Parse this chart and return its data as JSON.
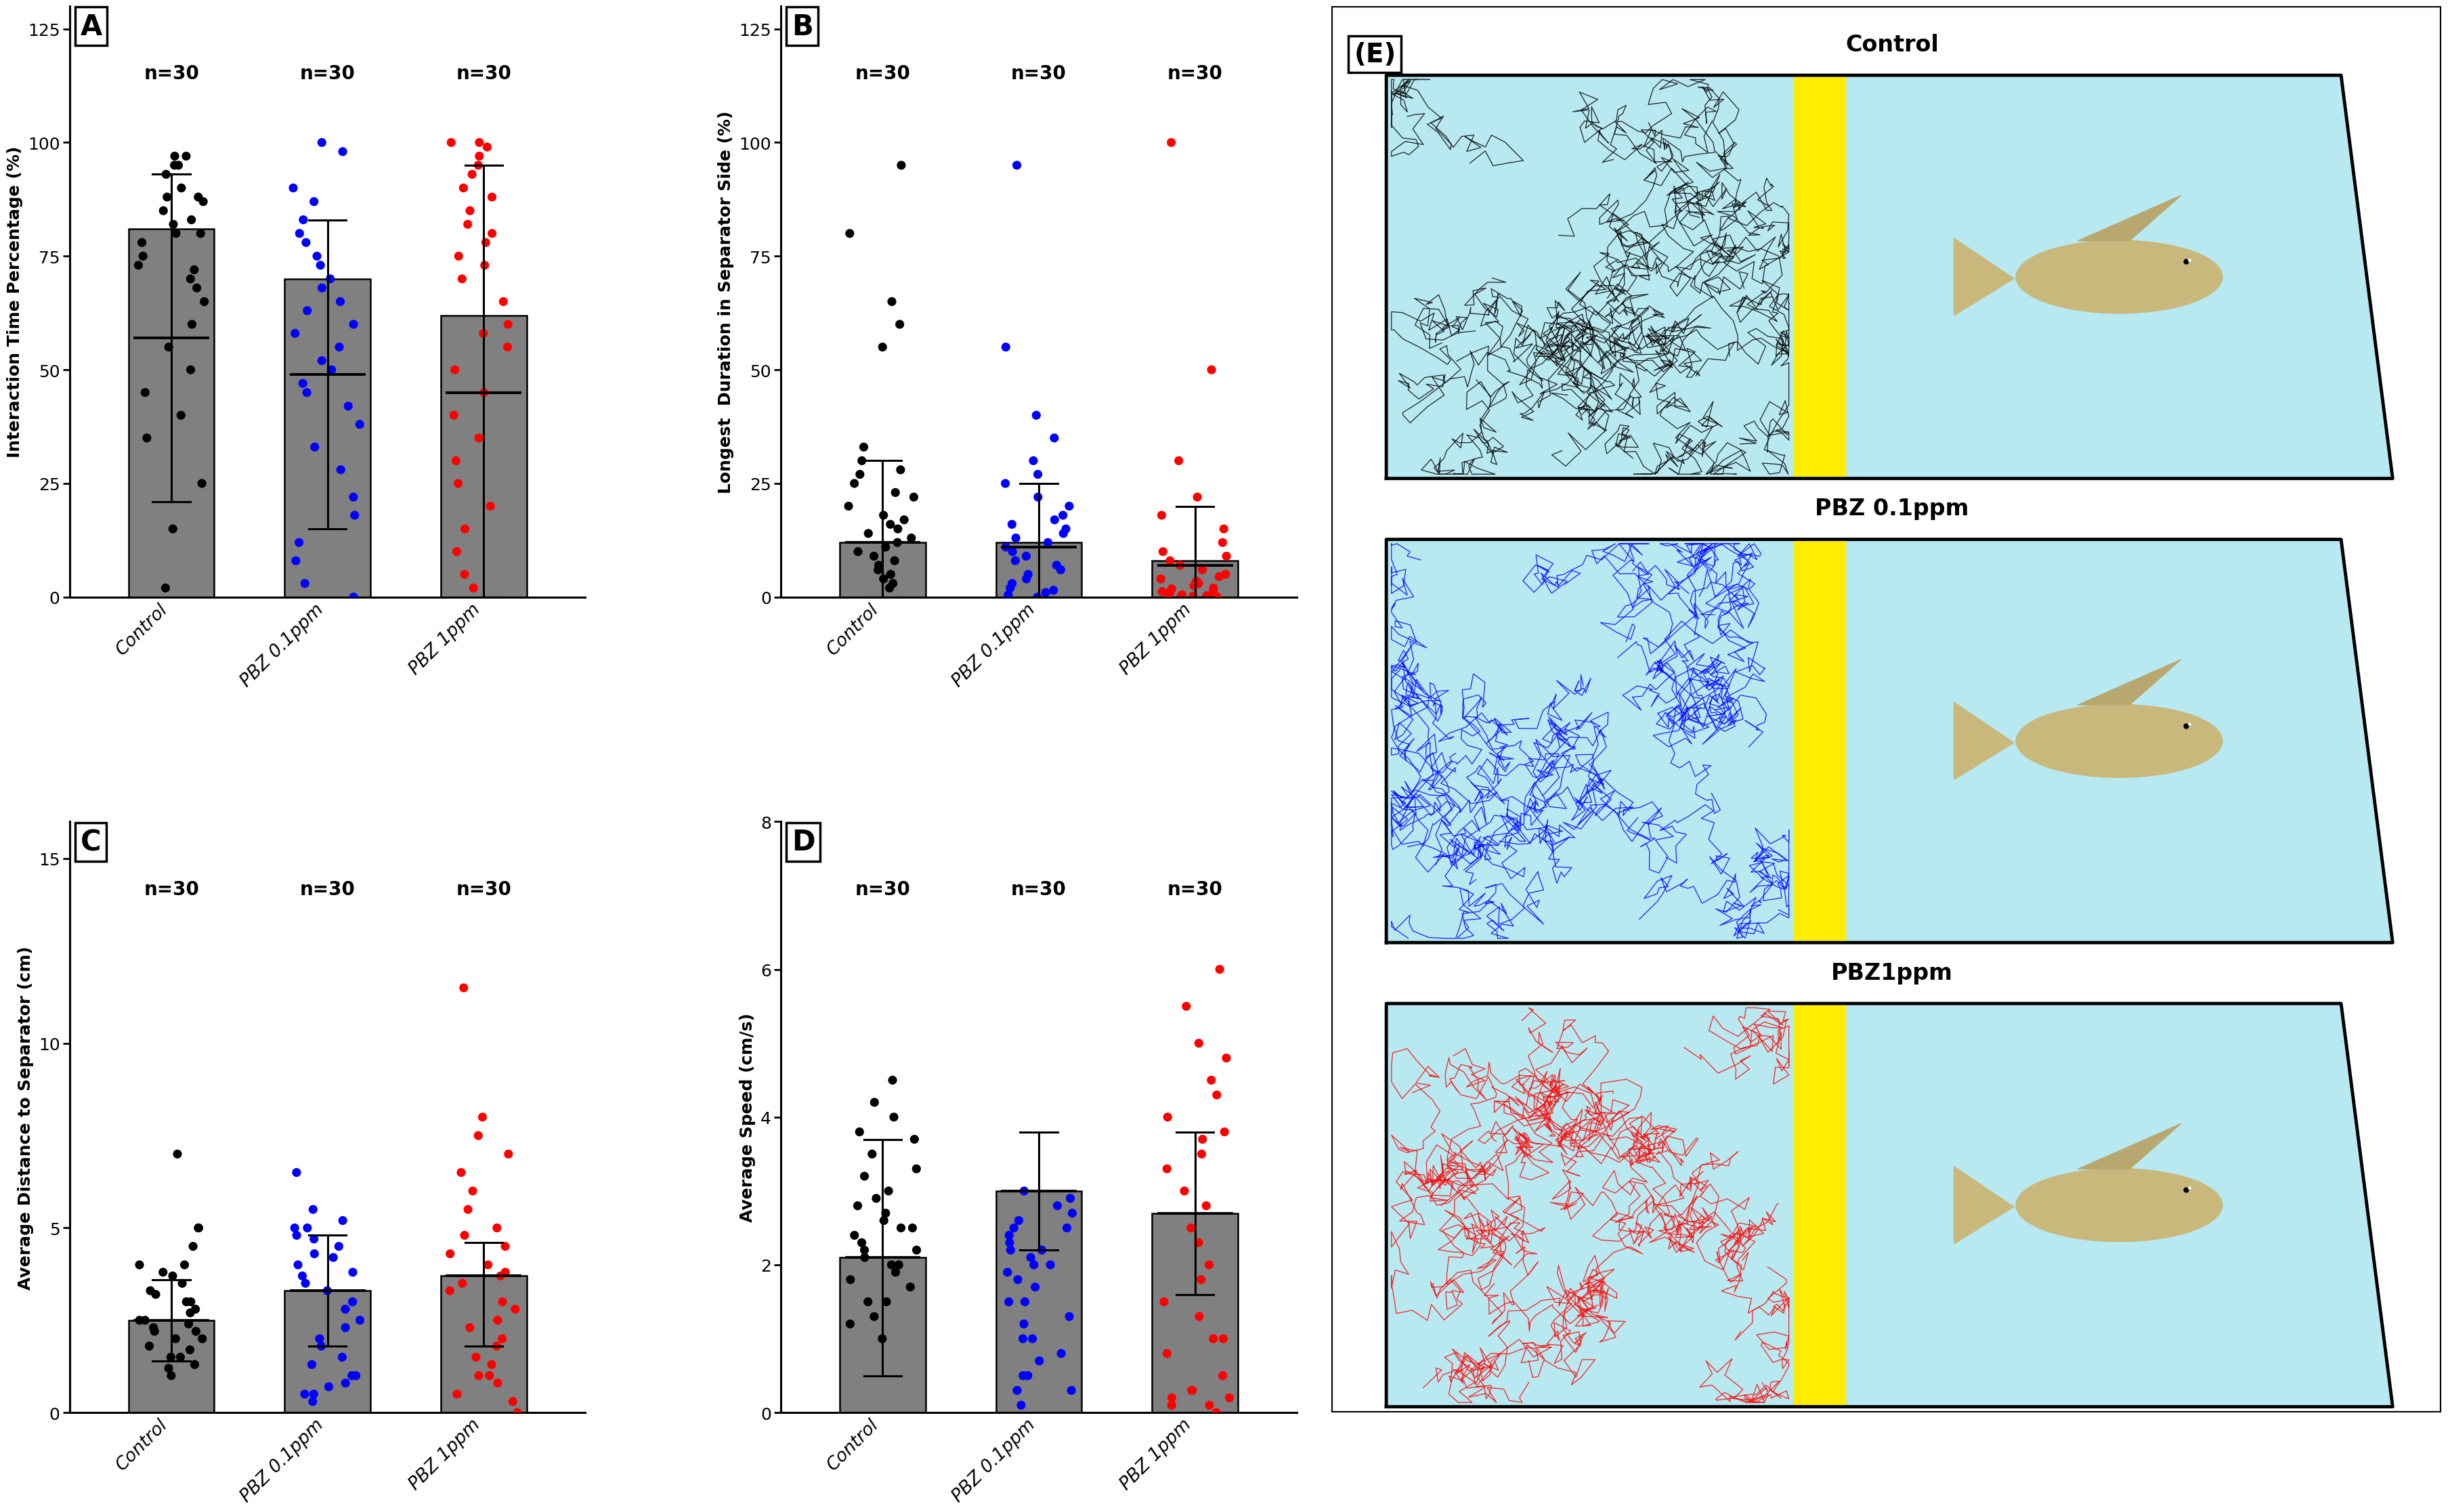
{
  "panel_A": {
    "label": "A",
    "ylabel": "Interaction Time Percentage (%)",
    "ylim": [
      0,
      130
    ],
    "yticks": [
      0,
      25,
      50,
      75,
      100,
      125
    ],
    "bar_height": [
      81,
      70,
      62
    ],
    "bar_mean": [
      57,
      49,
      45
    ],
    "bar_sd_upper": [
      93,
      83,
      95
    ],
    "bar_sd_lower": [
      21,
      15,
      0
    ],
    "categories": [
      "Control",
      "PBZ 0.1ppm",
      "PBZ 1ppm"
    ],
    "n_labels": [
      "n=30",
      "n=30",
      "n=30"
    ],
    "dots_black": [
      97,
      97,
      95,
      95,
      93,
      90,
      88,
      88,
      87,
      85,
      83,
      82,
      80,
      80,
      78,
      75,
      73,
      72,
      70,
      68,
      65,
      60,
      55,
      50,
      45,
      40,
      35,
      25,
      15,
      2
    ],
    "dots_blue": [
      100,
      98,
      90,
      87,
      83,
      80,
      78,
      75,
      73,
      70,
      68,
      65,
      63,
      60,
      58,
      55,
      52,
      50,
      47,
      45,
      42,
      38,
      33,
      28,
      22,
      18,
      12,
      8,
      3,
      0
    ],
    "dots_red": [
      100,
      100,
      99,
      97,
      95,
      93,
      90,
      88,
      85,
      82,
      80,
      78,
      75,
      73,
      70,
      65,
      60,
      58,
      55,
      50,
      45,
      40,
      35,
      30,
      25,
      20,
      15,
      10,
      5,
      2
    ]
  },
  "panel_B": {
    "label": "B",
    "ylabel": "Longest  Duration in Separator Side (%)",
    "ylim": [
      0,
      130
    ],
    "yticks": [
      0,
      25,
      50,
      75,
      100,
      125
    ],
    "bar_height": [
      12,
      12,
      8
    ],
    "bar_mean": [
      12,
      11,
      7
    ],
    "bar_sd_upper": [
      30,
      25,
      20
    ],
    "bar_sd_lower": [
      0,
      0,
      0
    ],
    "categories": [
      "Control",
      "PBZ 0.1ppm",
      "PBZ 1ppm"
    ],
    "n_labels": [
      "n=30",
      "n=30",
      "n=30"
    ],
    "dots_black": [
      95,
      80,
      65,
      60,
      55,
      33,
      30,
      28,
      27,
      25,
      23,
      22,
      20,
      18,
      17,
      16,
      15,
      14,
      13,
      12,
      11,
      10,
      9,
      8,
      7,
      6,
      5,
      4,
      3,
      2
    ],
    "dots_blue": [
      95,
      55,
      40,
      35,
      30,
      27,
      25,
      22,
      20,
      18,
      17,
      16,
      15,
      14,
      13,
      12,
      11,
      10,
      9,
      8,
      7,
      6,
      5,
      4,
      3,
      2,
      1.5,
      1,
      0.5,
      0
    ],
    "dots_red": [
      100,
      50,
      30,
      22,
      18,
      15,
      12,
      10,
      9,
      8,
      7,
      6,
      5,
      4.5,
      4,
      3.5,
      3,
      2.5,
      2,
      1.8,
      1.5,
      1.2,
      1,
      0.8,
      0.5,
      0.3,
      0.2,
      0.1,
      0,
      0
    ]
  },
  "panel_C": {
    "label": "C",
    "ylabel": "Average Distance to Separator (cm)",
    "ylim": [
      0,
      16
    ],
    "yticks": [
      0,
      5,
      10,
      15
    ],
    "bar_height": [
      2.5,
      3.3,
      3.7
    ],
    "bar_mean": [
      2.5,
      3.3,
      3.7
    ],
    "bar_sd_upper": [
      3.6,
      4.8,
      4.6
    ],
    "bar_sd_lower": [
      1.4,
      1.8,
      1.8
    ],
    "categories": [
      "Control",
      "PBZ 0.1ppm",
      "PBZ 1ppm"
    ],
    "n_labels": [
      "n=30",
      "n=30",
      "n=30"
    ],
    "dots_black": [
      7,
      5,
      5,
      4.5,
      4,
      4,
      3.8,
      3.7,
      3.5,
      3.3,
      3.2,
      3,
      3,
      2.8,
      2.7,
      2.5,
      2.5,
      2.4,
      2.3,
      2.2,
      2.2,
      2,
      2,
      1.8,
      1.7,
      1.5,
      1.5,
      1.3,
      1.2,
      1
    ],
    "dots_blue": [
      6.5,
      5.5,
      5.2,
      5,
      5,
      4.8,
      4.7,
      4.5,
      4.3,
      4.2,
      4,
      3.8,
      3.7,
      3.5,
      3.3,
      3,
      2.8,
      2.5,
      2.3,
      2,
      1.8,
      1.5,
      1.3,
      1,
      1,
      0.8,
      0.7,
      0.5,
      0.5,
      0.3
    ],
    "dots_red": [
      11.5,
      8,
      7.5,
      7,
      6.5,
      6,
      5.5,
      5,
      4.8,
      4.5,
      4.3,
      4,
      3.8,
      3.7,
      3.5,
      3.3,
      3,
      2.8,
      2.5,
      2.3,
      2,
      1.8,
      1.5,
      1.3,
      1,
      1,
      0.8,
      0.5,
      0.3,
      0
    ]
  },
  "panel_D": {
    "label": "D",
    "ylabel": "Average Speed (cm/s)",
    "ylim": [
      0,
      8
    ],
    "yticks": [
      0,
      2,
      4,
      6,
      8
    ],
    "bar_height": [
      2.1,
      3.0,
      2.7
    ],
    "bar_mean": [
      2.1,
      3.0,
      2.7
    ],
    "bar_sd_upper": [
      3.7,
      3.8,
      3.8
    ],
    "bar_sd_lower": [
      0.5,
      2.2,
      1.6
    ],
    "categories": [
      "Control",
      "PBZ 0.1ppm",
      "PBZ 1ppm"
    ],
    "n_labels": [
      "n=30",
      "n=30",
      "n=30"
    ],
    "dots_black": [
      4.5,
      4.2,
      4,
      3.8,
      3.7,
      3.5,
      3.3,
      3.2,
      3,
      2.9,
      2.8,
      2.7,
      2.6,
      2.5,
      2.5,
      2.4,
      2.3,
      2.2,
      2.2,
      2.1,
      2,
      2,
      1.9,
      1.8,
      1.7,
      1.5,
      1.5,
      1.3,
      1.2,
      1
    ],
    "dots_blue": [
      3.0,
      2.9,
      2.8,
      2.7,
      2.6,
      2.5,
      2.5,
      2.4,
      2.3,
      2.2,
      2.2,
      2.1,
      2,
      2,
      1.9,
      1.8,
      1.7,
      1.5,
      1.5,
      1.3,
      1.2,
      1,
      1,
      0.8,
      0.7,
      0.5,
      0.5,
      0.3,
      0.3,
      0.1
    ],
    "dots_red": [
      6,
      5.5,
      5,
      4.8,
      4.5,
      4.3,
      4,
      3.8,
      3.7,
      3.5,
      3.3,
      3,
      2.8,
      2.5,
      2.3,
      2,
      1.8,
      1.5,
      1.3,
      1,
      1,
      0.8,
      0.5,
      0.3,
      0.3,
      0.2,
      0.2,
      0.1,
      0.1,
      0
    ]
  },
  "bar_color": "#808080",
  "bar_edge_color": "#000000",
  "background_color": "#ffffff",
  "dot_colors": [
    "#000000",
    "#0000ff",
    "#ff0000"
  ],
  "panel_E_titles": [
    "Control",
    "PBZ 0.1ppm",
    "PBZ1ppm"
  ],
  "tank_bg": "#b8e8f0",
  "separator_color": "#ffee00",
  "figure_bg": "#ffffff"
}
